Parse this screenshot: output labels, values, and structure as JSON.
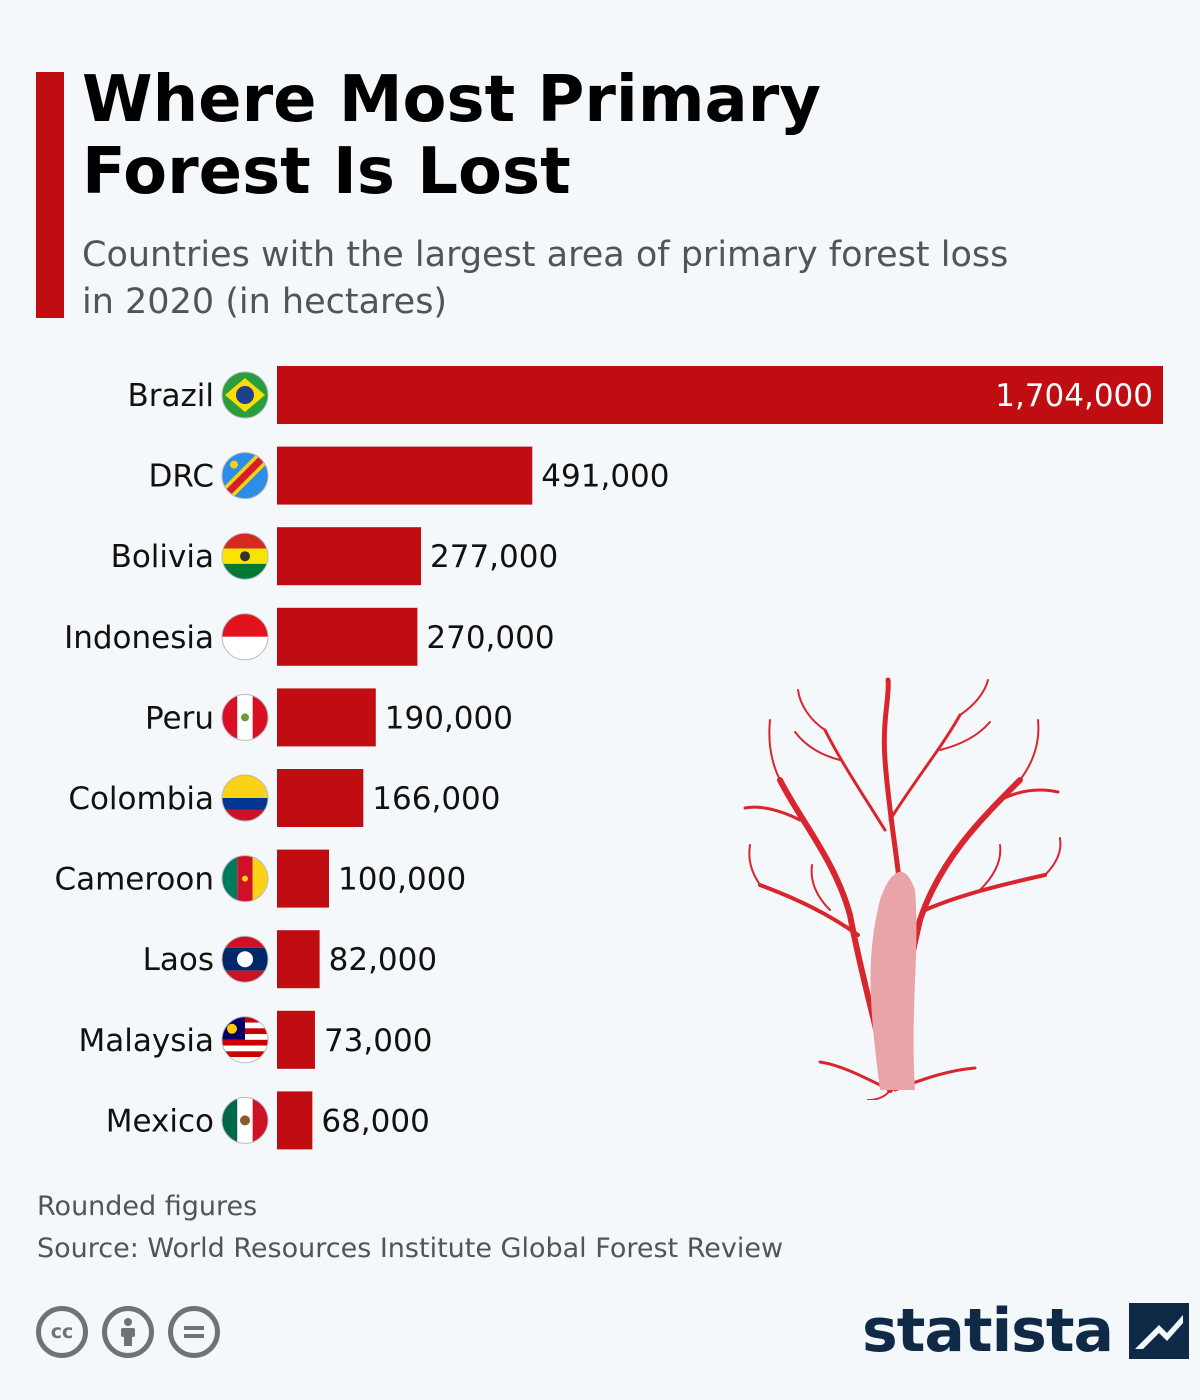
{
  "header": {
    "title_line1": "Where Most Primary",
    "title_line2": "Forest Is Lost",
    "subtitle_line1": "Countries with the largest area of primary forest loss",
    "subtitle_line2": "in 2020 (in hectares)"
  },
  "chart_data": {
    "type": "bar",
    "orientation": "horizontal",
    "categories": [
      "Brazil",
      "DRC",
      "Bolivia",
      "Indonesia",
      "Peru",
      "Colombia",
      "Cameroon",
      "Laos",
      "Malaysia",
      "Mexico"
    ],
    "values": [
      1704000,
      491000,
      277000,
      270000,
      190000,
      166000,
      100000,
      82000,
      73000,
      68000
    ],
    "value_labels": [
      "1,704,000",
      "491,000",
      "277,000",
      "270,000",
      "190,000",
      "166,000",
      "100,000",
      "82,000",
      "73,000",
      "68,000"
    ],
    "flags": [
      "brazil-flag-icon",
      "drc-flag-icon",
      "bolivia-flag-icon",
      "indonesia-flag-icon",
      "peru-flag-icon",
      "colombia-flag-icon",
      "cameroon-flag-icon",
      "laos-flag-icon",
      "malaysia-flag-icon",
      "mexico-flag-icon"
    ],
    "xlim": [
      0,
      1704000
    ],
    "bar_color": "#c00d12",
    "grid": false,
    "legend": "none"
  },
  "footer": {
    "note": "Rounded figures",
    "source": "Source: World Resources Institute Global Forest Review",
    "brand": "statista",
    "cc_icons": [
      "cc-icon",
      "attribution-icon",
      "no-derivatives-icon"
    ]
  },
  "colors": {
    "accent": "#c00d12",
    "title": "#000000",
    "subtitle": "#505559",
    "brand": "#0f2a47",
    "tree": "#d9262e"
  }
}
